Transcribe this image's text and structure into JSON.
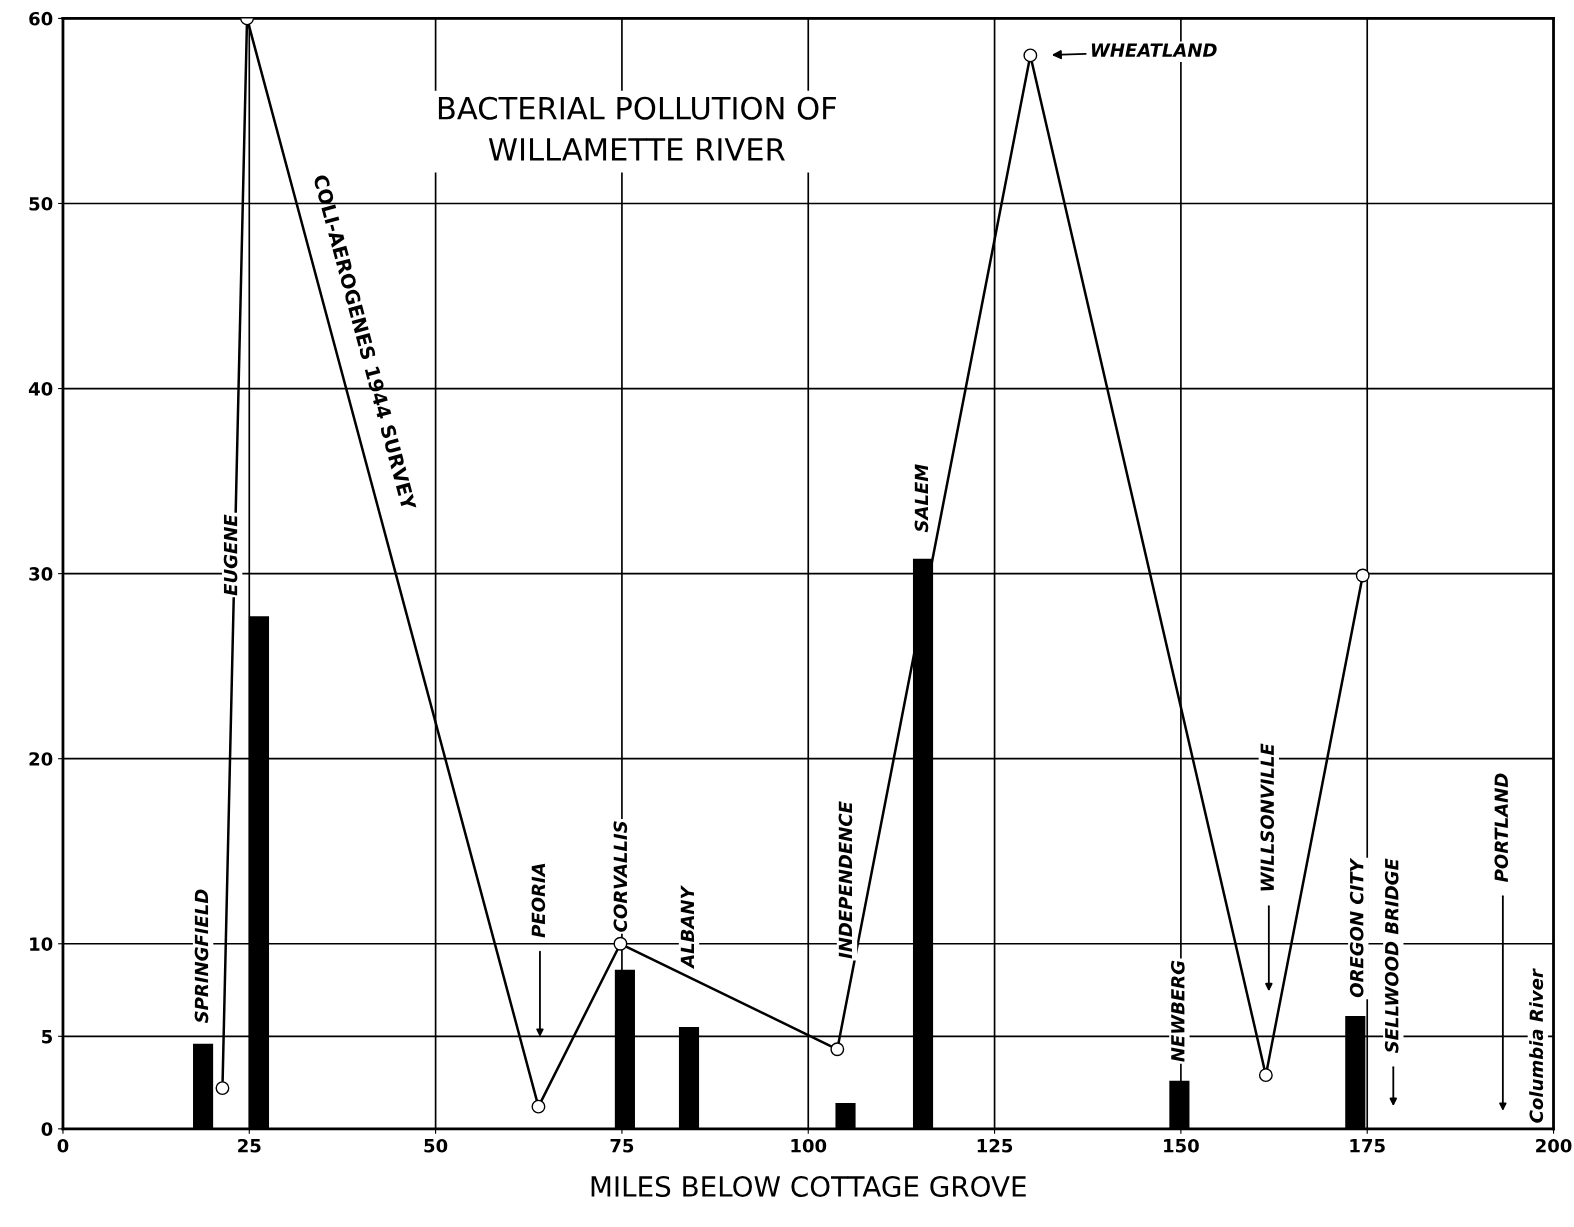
{
  "chart_data": {
    "type": "bar",
    "title": "BACTERIAL POLLUTION OF\nWILLAMETTE RIVER",
    "xlabel": "MILES BELOW COTTAGE GROVE",
    "series": [
      {
        "color": "#000000",
        "x": [
          18.8,
          26.3,
          75.4,
          84,
          105,
          115.4,
          149.8,
          173.4
        ],
        "values": [
          4.6,
          27.7,
          8.6,
          5.5,
          1.4,
          30.8,
          2.6,
          6.1
        ]
      },
      {
        "type": "line",
        "name": "COLI-AEROGENES 1944 SURVEY",
        "color": "#000000",
        "marker": "circle",
        "x": [
          21.4,
          24.7,
          63.8,
          74.8,
          103.9,
          129.8,
          161.4,
          174.4
        ],
        "values": [
          2.2,
          60,
          1.2,
          10,
          4.3,
          58,
          2.9,
          29.9
        ]
      }
    ],
    "xlim": [
      0,
      200
    ],
    "xticks": [
      0,
      25,
      50,
      75,
      100,
      125,
      150,
      175,
      200
    ],
    "ylim": [
      0,
      60
    ],
    "yticks": [
      0,
      5,
      10,
      20,
      30,
      40,
      50,
      60
    ],
    "grid": true,
    "annotations": [
      "SPRINGFIELD",
      "EUGENE",
      "PEORIA",
      "CORVALLIS",
      "ALBANY",
      "INDEPENDENCE",
      "SALEM",
      "WHEATLAND",
      "NEWBERG",
      "WILLSONVILLE",
      "OREGON CITY",
      "SELLWOOD BRIDGE",
      "PORTLAND",
      "Columbia River"
    ]
  }
}
